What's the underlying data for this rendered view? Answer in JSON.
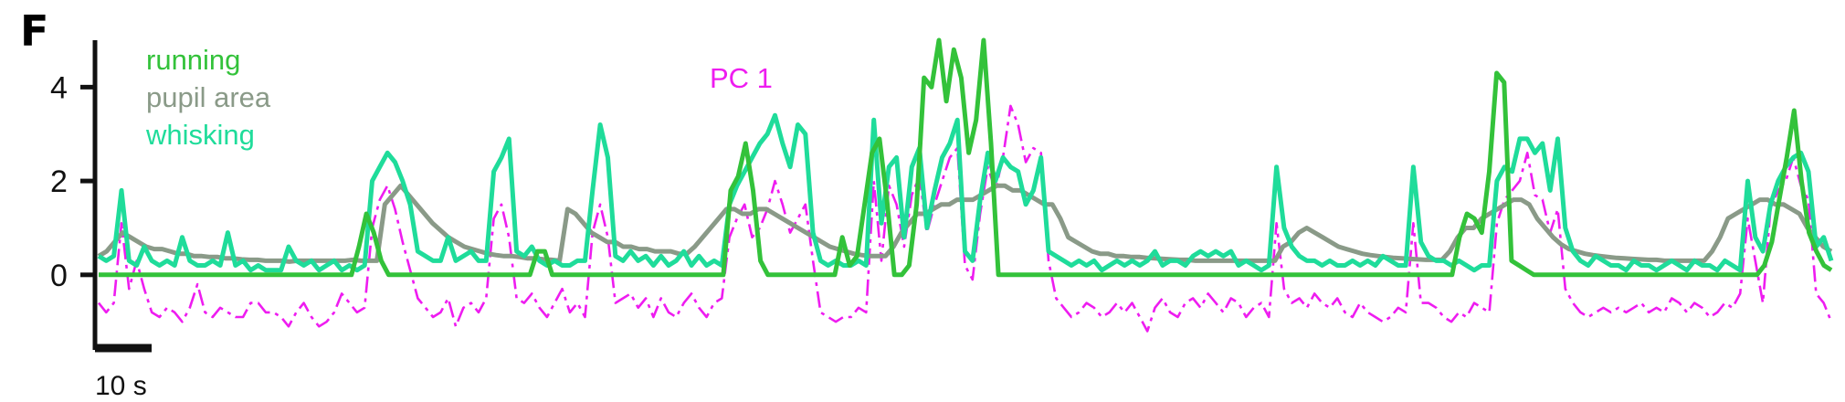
{
  "panel_label": "F",
  "chart_data": {
    "type": "line",
    "ylim": [
      -1.6,
      5.0
    ],
    "x_range": [
      0,
      190
    ],
    "yticks": [
      {
        "value": 0,
        "label": "0"
      },
      {
        "value": 2,
        "label": "2"
      },
      {
        "value": 4,
        "label": "4"
      }
    ],
    "scale_bar": {
      "label": "10 s",
      "seconds": 10
    },
    "grid": false,
    "series": [
      {
        "name": "running",
        "color": "#33c23a",
        "style": "solid",
        "legend_label": "running",
        "values": [
          0,
          0,
          0,
          0,
          0,
          0,
          0,
          0,
          0,
          0,
          0,
          0,
          0,
          0,
          0,
          0,
          0,
          0,
          0,
          0,
          0,
          0,
          0,
          0,
          0,
          0,
          0,
          0,
          0,
          0,
          0,
          0,
          0,
          0,
          0,
          0.6,
          1.3,
          0.9,
          0.3,
          0,
          0,
          0,
          0,
          0,
          0,
          0,
          0,
          0,
          0,
          0,
          0,
          0,
          0,
          0,
          0,
          0,
          0,
          0,
          0,
          0.5,
          0.5,
          0,
          0,
          0,
          0,
          0,
          0,
          0,
          0,
          0,
          0,
          0,
          0,
          0,
          0,
          0,
          0,
          0,
          0,
          0,
          0,
          0,
          0,
          0,
          0,
          1.8,
          2.1,
          2.8,
          1.8,
          0.3,
          0,
          0,
          0,
          0,
          0,
          0,
          0,
          0,
          0,
          0,
          0.8,
          0.2,
          0.4,
          1.5,
          2.6,
          2.9,
          1.6,
          0,
          0,
          0.2,
          1.5,
          4.2,
          4.0,
          5.0,
          3.7,
          4.8,
          4.2,
          2.6,
          3.3,
          5.0,
          2.8,
          0,
          0,
          0,
          0,
          0,
          0,
          0,
          0,
          0,
          0,
          0,
          0,
          0,
          0,
          0,
          0,
          0,
          0,
          0,
          0,
          0,
          0,
          0,
          0,
          0,
          0,
          0,
          0,
          0,
          0,
          0,
          0,
          0,
          0,
          0,
          0,
          0,
          0,
          0,
          0,
          0,
          0,
          0,
          0,
          0,
          0,
          0,
          0,
          0,
          0,
          0,
          0,
          0,
          0,
          0,
          0,
          0,
          0,
          0,
          0,
          0,
          0,
          0.8,
          1.3,
          1.2,
          0.9,
          2.2,
          4.3,
          4.1,
          0.3,
          0.2,
          0.1,
          0,
          0,
          0,
          0,
          0,
          0,
          0,
          0,
          0,
          0,
          0,
          0,
          0,
          0,
          0,
          0,
          0,
          0,
          0,
          0,
          0,
          0,
          0,
          0,
          0,
          0,
          0,
          0,
          0,
          0,
          0,
          0.2,
          0.7,
          1.6,
          2.5,
          3.5,
          2.0,
          0.9,
          0.5,
          0.2,
          0.1
        ]
      },
      {
        "name": "pupil area",
        "color": "#8a9a88",
        "style": "solid",
        "legend_label": "pupil area",
        "values": [
          0.4,
          0.5,
          0.7,
          0.9,
          0.8,
          0.7,
          0.6,
          0.55,
          0.55,
          0.5,
          0.45,
          0.45,
          0.4,
          0.4,
          0.38,
          0.38,
          0.35,
          0.35,
          0.33,
          0.32,
          0.32,
          0.3,
          0.3,
          0.3,
          0.28,
          0.3,
          0.3,
          0.3,
          0.3,
          0.3,
          0.3,
          0.3,
          0.32,
          0.3,
          0.3,
          0.3,
          1.5,
          1.7,
          1.9,
          1.7,
          1.5,
          1.3,
          1.1,
          0.95,
          0.8,
          0.7,
          0.6,
          0.55,
          0.5,
          0.45,
          0.42,
          0.4,
          0.4,
          0.38,
          0.35,
          0.35,
          0.33,
          0.32,
          0.3,
          1.4,
          1.3,
          1.1,
          0.9,
          0.8,
          0.7,
          0.7,
          0.6,
          0.6,
          0.55,
          0.55,
          0.5,
          0.5,
          0.5,
          0.45,
          0.45,
          0.6,
          0.8,
          1.0,
          1.2,
          1.4,
          1.4,
          1.3,
          1.3,
          1.4,
          1.4,
          1.3,
          1.2,
          1.1,
          1.0,
          0.9,
          0.8,
          0.7,
          0.6,
          0.55,
          0.5,
          0.45,
          0.42,
          0.4,
          0.4,
          0.4,
          0.6,
          0.9,
          1.1,
          1.3,
          1.3,
          1.4,
          1.5,
          1.5,
          1.6,
          1.6,
          1.6,
          1.7,
          1.8,
          1.9,
          1.9,
          1.8,
          1.8,
          1.7,
          1.6,
          1.5,
          1.5,
          1.2,
          0.8,
          0.7,
          0.6,
          0.5,
          0.45,
          0.45,
          0.4,
          0.4,
          0.38,
          0.38,
          0.36,
          0.35,
          0.34,
          0.33,
          0.32,
          0.32,
          0.3,
          0.3,
          0.3,
          0.3,
          0.3,
          0.3,
          0.3,
          0.3,
          0.3,
          0.3,
          0.3,
          0.6,
          0.7,
          0.9,
          1.0,
          0.9,
          0.8,
          0.7,
          0.6,
          0.55,
          0.5,
          0.45,
          0.42,
          0.4,
          0.38,
          0.36,
          0.35,
          0.34,
          0.33,
          0.32,
          0.32,
          0.32,
          0.5,
          0.8,
          1.0,
          1.0,
          1.2,
          1.3,
          1.4,
          1.5,
          1.6,
          1.6,
          1.5,
          1.2,
          1.0,
          0.8,
          0.65,
          0.55,
          0.5,
          0.45,
          0.42,
          0.4,
          0.38,
          0.36,
          0.35,
          0.34,
          0.33,
          0.32,
          0.32,
          0.3,
          0.3,
          0.3,
          0.3,
          0.3,
          0.3,
          0.5,
          0.8,
          1.2,
          1.3,
          1.4,
          1.5,
          1.6,
          1.6,
          1.5,
          1.5,
          1.4,
          1.3,
          1.0,
          0.8,
          0.6,
          0.5
        ]
      },
      {
        "name": "whisking",
        "color": "#1fdc9a",
        "style": "solid",
        "legend_label": "whisking",
        "values": [
          0.4,
          0.3,
          0.4,
          1.8,
          0.3,
          0.2,
          0.6,
          0.3,
          0.2,
          0.3,
          0.2,
          0.8,
          0.3,
          0.2,
          0.2,
          0.3,
          0.2,
          0.9,
          0.2,
          0.3,
          0.1,
          0.2,
          0.1,
          0.1,
          0.1,
          0.6,
          0.3,
          0.2,
          0.3,
          0.1,
          0.2,
          0.3,
          0.1,
          0.2,
          0.1,
          0.2,
          2.0,
          2.3,
          2.6,
          2.4,
          2.0,
          1.5,
          0.5,
          0.4,
          0.3,
          0.3,
          0.8,
          0.3,
          0.4,
          0.5,
          0.3,
          0.3,
          2.2,
          2.5,
          2.9,
          0.5,
          0.4,
          0.6,
          0.3,
          0.2,
          0.3,
          0.2,
          0.2,
          0.3,
          0.3,
          1.8,
          3.2,
          2.5,
          0.4,
          0.3,
          0.5,
          0.3,
          0.4,
          0.2,
          0.4,
          0.2,
          0.3,
          0.5,
          0.2,
          0.4,
          0.2,
          0.3,
          0.2,
          1.5,
          1.9,
          2.2,
          2.5,
          2.8,
          3.0,
          3.4,
          2.8,
          2.3,
          3.2,
          3.0,
          0.9,
          0.3,
          0.2,
          0.3,
          0.2,
          0.2,
          0.3,
          0.2,
          3.3,
          1.1,
          2.3,
          2.5,
          0.8,
          2.3,
          2.7,
          1.0,
          1.8,
          2.5,
          2.8,
          3.3,
          0.5,
          0.3,
          1.6,
          2.6,
          2.0,
          2.5,
          2.3,
          2.2,
          1.5,
          1.8,
          2.5,
          0.5,
          0.4,
          0.3,
          0.2,
          0.3,
          0.2,
          0.3,
          0.1,
          0.2,
          0.3,
          0.2,
          0.3,
          0.2,
          0.3,
          0.5,
          0.2,
          0.3,
          0.3,
          0.2,
          0.4,
          0.5,
          0.4,
          0.5,
          0.4,
          0.5,
          0.2,
          0.3,
          0.2,
          0.1,
          0.2,
          2.3,
          1.0,
          0.6,
          0.4,
          0.3,
          0.3,
          0.2,
          0.3,
          0.2,
          0.2,
          0.3,
          0.2,
          0.3,
          0.2,
          0.4,
          0.3,
          0.2,
          0.2,
          2.3,
          0.7,
          0.4,
          0.3,
          0.3,
          0.2,
          0.3,
          0.2,
          0.1,
          0.2,
          0.2,
          2.0,
          2.3,
          2.2,
          2.9,
          2.9,
          2.6,
          2.8,
          1.8,
          2.9,
          1.0,
          0.5,
          0.3,
          0.2,
          0.4,
          0.3,
          0.2,
          0.2,
          0.1,
          0.3,
          0.2,
          0.2,
          0.1,
          0.2,
          0.3,
          0.2,
          0.1,
          0.3,
          0.2,
          0.2,
          0.1,
          0.3,
          0.2,
          0.1,
          2.0,
          0.8,
          0.5,
          1.5,
          2.0,
          2.3,
          2.5,
          2.6,
          2.2,
          0.6,
          0.8,
          0.3
        ]
      },
      {
        "name": "PC 1",
        "color": "#ee1cf0",
        "style": "dashdot",
        "legend_label": "PC 1",
        "values": [
          -0.6,
          -0.8,
          -0.6,
          1.1,
          -0.3,
          0.3,
          -0.3,
          -0.8,
          -0.9,
          -0.7,
          -0.8,
          -1.0,
          -0.7,
          -0.2,
          -0.8,
          -0.9,
          -0.7,
          -0.8,
          -0.9,
          -0.9,
          -0.6,
          -0.6,
          -0.8,
          -0.8,
          -0.9,
          -1.1,
          -0.8,
          -0.6,
          -0.9,
          -1.1,
          -1.0,
          -0.8,
          -0.4,
          -0.6,
          -0.8,
          -0.7,
          1.0,
          1.6,
          1.9,
          1.4,
          0.7,
          0.1,
          -0.5,
          -0.7,
          -0.9,
          -0.8,
          -0.5,
          -1.1,
          -0.7,
          -0.6,
          -0.8,
          -0.5,
          1.2,
          1.5,
          0.8,
          -0.5,
          -0.6,
          -0.4,
          -0.7,
          -0.9,
          -0.6,
          -0.3,
          -0.8,
          -0.6,
          -0.9,
          0.9,
          1.5,
          0.8,
          -0.6,
          -0.5,
          -0.4,
          -0.7,
          -0.5,
          -0.9,
          -0.5,
          -0.8,
          -0.9,
          -0.6,
          -0.4,
          -0.7,
          -0.9,
          -0.6,
          -0.5,
          0.8,
          1.2,
          1.5,
          0.8,
          1.0,
          1.4,
          2.0,
          1.5,
          0.9,
          1.2,
          1.5,
          0.3,
          -0.8,
          -0.9,
          -1.0,
          -0.9,
          -0.9,
          -0.7,
          -0.8,
          2.0,
          0.3,
          1.9,
          1.5,
          0.6,
          1.7,
          2.1,
          0.9,
          1.5,
          2.0,
          2.5,
          2.7,
          0.2,
          -0.1,
          1.3,
          2.3,
          1.8,
          2.5,
          3.6,
          3.2,
          2.4,
          2.7,
          2.6,
          0.3,
          -0.5,
          -0.7,
          -0.9,
          -0.8,
          -0.6,
          -0.7,
          -0.9,
          -0.8,
          -0.6,
          -0.8,
          -0.6,
          -0.9,
          -1.2,
          -0.7,
          -0.5,
          -0.8,
          -0.9,
          -0.6,
          -0.5,
          -0.7,
          -0.4,
          -0.6,
          -0.8,
          -0.5,
          -0.6,
          -0.9,
          -0.7,
          -0.6,
          -0.9,
          1.1,
          -0.3,
          -0.6,
          -0.5,
          -0.7,
          -0.4,
          -0.6,
          -0.7,
          -0.5,
          -0.8,
          -0.9,
          -0.6,
          -0.8,
          -0.9,
          -1.0,
          -0.9,
          -0.7,
          -0.8,
          1.1,
          -0.6,
          -0.6,
          -0.7,
          -0.9,
          -1.0,
          -0.8,
          -0.9,
          -0.6,
          -0.7,
          -0.8,
          1.1,
          1.6,
          1.8,
          2.0,
          2.6,
          1.7,
          1.6,
          0.9,
          1.4,
          -0.3,
          -0.6,
          -0.8,
          -0.9,
          -0.8,
          -0.7,
          -0.8,
          -0.7,
          -0.8,
          -0.7,
          -0.6,
          -0.8,
          -0.7,
          -0.8,
          -0.5,
          -0.6,
          -0.8,
          -0.6,
          -0.7,
          -0.9,
          -0.8,
          -0.6,
          -0.7,
          -0.4,
          1.2,
          0.3,
          -0.6,
          1.4,
          1.8,
          2.0,
          2.5,
          1.9,
          1.6,
          -0.4,
          -0.6,
          -1.0
        ]
      }
    ]
  }
}
